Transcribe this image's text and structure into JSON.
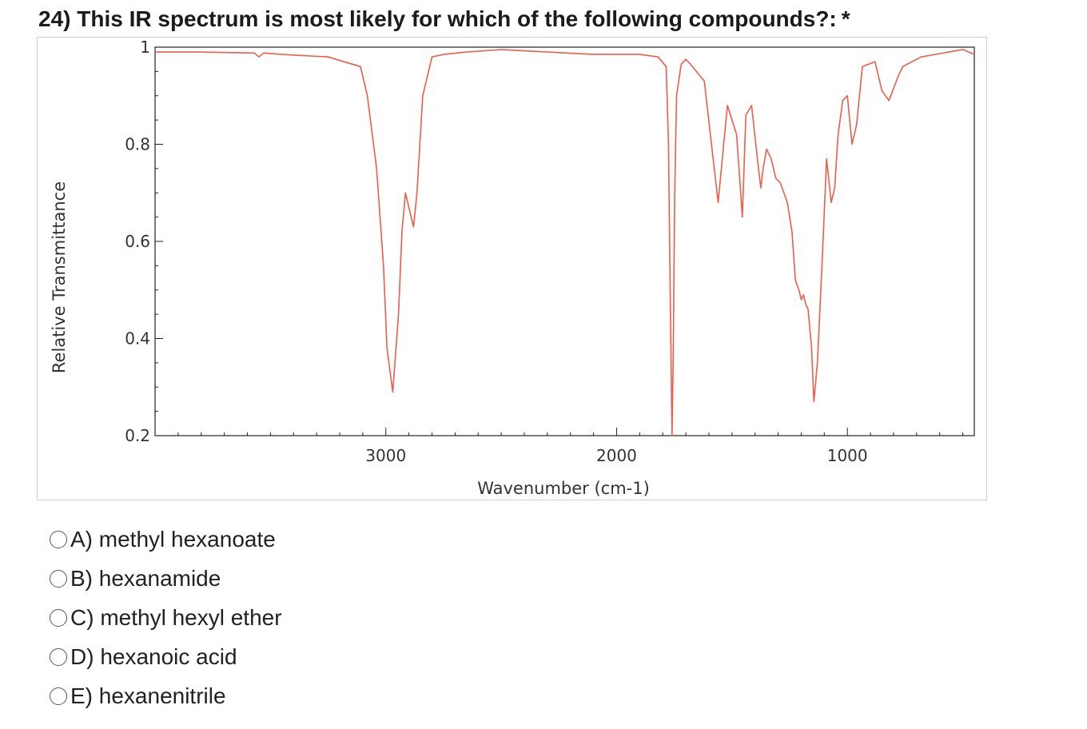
{
  "question": {
    "title": "24) This IR spectrum is most likely for which of the following compounds?:",
    "required_marker": "*"
  },
  "chart_data": {
    "type": "line",
    "title": "",
    "xlabel": "Wavenumber (cm-1)",
    "ylabel": "Relative Transmittance",
    "xlim": [
      4000,
      450
    ],
    "x_reversed": true,
    "ylim": [
      0.2,
      1.0
    ],
    "x_tick_labels": [
      3000,
      2000,
      1000
    ],
    "y_tick_labels": [
      "1",
      "0.8",
      "0.6",
      "0.4",
      "0.2"
    ],
    "y_tick_values": [
      1.0,
      0.8,
      0.6,
      0.4,
      0.2
    ],
    "grid": false,
    "legend": "none",
    "line_color": "#ee5c4b",
    "series": [
      {
        "x": [
          4000,
          3800,
          3570,
          3550,
          3530,
          3450,
          3250,
          3110,
          3080,
          3040,
          3010,
          2995,
          2970,
          2945,
          2930,
          2915,
          2895,
          2880,
          2865,
          2840,
          2800,
          2750,
          2650,
          2500,
          2300,
          2100,
          2000,
          1900,
          1820,
          1785,
          1775,
          1768,
          1760,
          1755,
          1748,
          1740,
          1720,
          1700,
          1680,
          1620,
          1560,
          1520,
          1480,
          1465,
          1455,
          1440,
          1415,
          1390,
          1375,
          1365,
          1350,
          1330,
          1310,
          1290,
          1260,
          1240,
          1225,
          1210,
          1200,
          1190,
          1180,
          1170,
          1155,
          1145,
          1130,
          1110,
          1090,
          1070,
          1055,
          1040,
          1020,
          1000,
          980,
          960,
          935,
          880,
          850,
          820,
          780,
          760,
          720,
          680,
          620,
          560,
          500,
          450
        ],
        "y": [
          0.99,
          0.99,
          0.988,
          0.98,
          0.988,
          0.985,
          0.98,
          0.96,
          0.9,
          0.75,
          0.55,
          0.38,
          0.29,
          0.45,
          0.62,
          0.7,
          0.66,
          0.63,
          0.7,
          0.9,
          0.98,
          0.985,
          0.99,
          0.995,
          0.99,
          0.985,
          0.985,
          0.985,
          0.98,
          0.96,
          0.8,
          0.5,
          0.2,
          0.35,
          0.7,
          0.9,
          0.965,
          0.975,
          0.965,
          0.93,
          0.68,
          0.88,
          0.82,
          0.72,
          0.65,
          0.86,
          0.88,
          0.77,
          0.71,
          0.75,
          0.79,
          0.77,
          0.73,
          0.72,
          0.68,
          0.62,
          0.52,
          0.5,
          0.48,
          0.49,
          0.47,
          0.46,
          0.38,
          0.27,
          0.35,
          0.55,
          0.77,
          0.68,
          0.71,
          0.82,
          0.89,
          0.9,
          0.8,
          0.84,
          0.96,
          0.97,
          0.91,
          0.89,
          0.94,
          0.96,
          0.97,
          0.98,
          0.985,
          0.99,
          0.995,
          0.985
        ]
      }
    ]
  },
  "options": [
    {
      "label": "A) methyl hexanoate"
    },
    {
      "label": "B) hexanamide"
    },
    {
      "label": "C) methyl hexyl ether"
    },
    {
      "label": "D) hexanoic acid"
    },
    {
      "label": "E) hexanenitrile"
    }
  ]
}
